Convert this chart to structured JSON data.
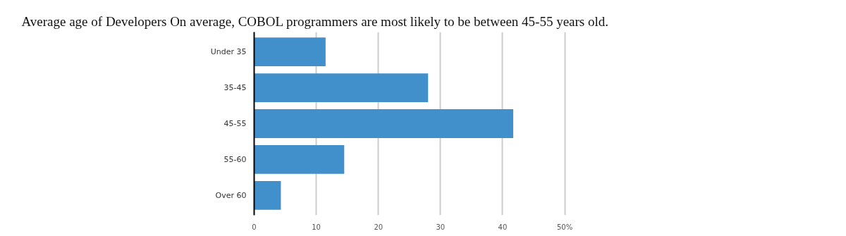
{
  "chart_data": {
    "type": "bar",
    "orientation": "horizontal",
    "title": "Average age of Developers On average, COBOL programmers are most likely to be between 45-55 years old.",
    "categories": [
      "Under 35",
      "35-45",
      "45-55",
      "55-60",
      "Over 60"
    ],
    "values": [
      11.5,
      28.0,
      41.7,
      14.5,
      4.3
    ],
    "color": "#418fcb",
    "xlim": [
      0,
      50
    ],
    "xticks": [
      0,
      10,
      20,
      30,
      40,
      {
        "value": 50,
        "label": "50%"
      }
    ],
    "grid": "x"
  }
}
